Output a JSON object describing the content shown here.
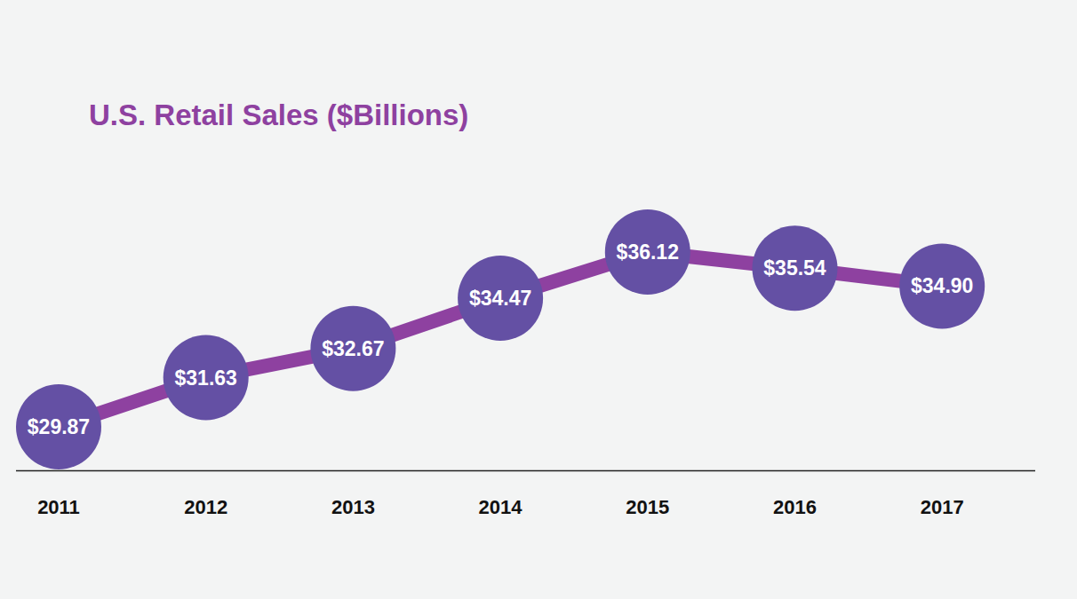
{
  "chart_data": {
    "type": "line",
    "title": "U.S. Retail Sales ($Billions)",
    "categories": [
      "2011",
      "2012",
      "2013",
      "2014",
      "2015",
      "2016",
      "2017"
    ],
    "values": [
      29.87,
      31.63,
      32.67,
      34.47,
      36.12,
      35.54,
      34.9
    ],
    "value_labels": [
      "$29.87",
      "$31.63",
      "$32.67",
      "$34.47",
      "$36.12",
      "$35.54",
      "$34.90"
    ],
    "color": "#8e41a0",
    "marker": "circle",
    "data_labels": true,
    "ylim": [
      28.3,
      38.8
    ],
    "tick_labels": "x"
  }
}
